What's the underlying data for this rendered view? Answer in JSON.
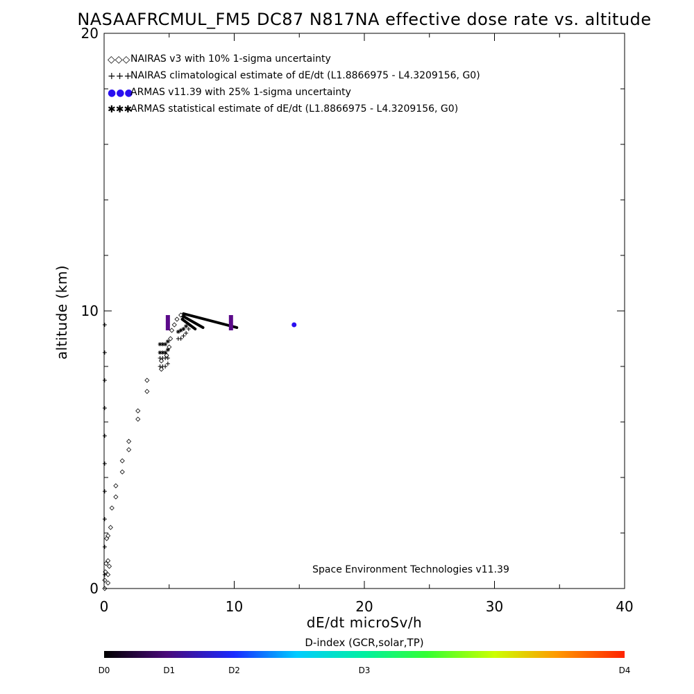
{
  "chart_data": {
    "type": "scatter",
    "title": "NASAAFRCMUL_FM5 DC87 N817NA effective dose rate vs. altitude",
    "xlabel": "dE/dt microSv/h",
    "ylabel": "altitude (km)",
    "xlim": [
      0,
      40
    ],
    "ylim": [
      0,
      20
    ],
    "x_ticks": [
      "0",
      "10",
      "20",
      "30",
      "40"
    ],
    "y_ticks": [
      "0",
      "10",
      "20"
    ],
    "grid": false,
    "legend_placement": "top-left",
    "legend": [
      {
        "marker": "◇◇◇",
        "label": "NAIRAS v3 with 10% 1-sigma uncertainty"
      },
      {
        "marker": "+++",
        "label": "NAIRAS climatological estimate of dE/dt (L1.8866975 - L4.3209156, G0)"
      },
      {
        "marker": "●●●",
        "label": "ARMAS v11.39 with 25% 1-sigma uncertainty"
      },
      {
        "marker": "✱✱✱",
        "label": "ARMAS statistical estimate of dE/dt (L1.8866975 - L4.3209156, G0)"
      }
    ],
    "credit": "Space Environment Technologies v11.39",
    "series": [
      {
        "name": "NAIRAS v3 with 10% 1-sigma uncertainty",
        "marker": "diamond",
        "color": "#000000",
        "points": [
          [
            0.05,
            0.0
          ],
          [
            0.05,
            0.3
          ],
          [
            0.1,
            0.6
          ],
          [
            0.15,
            0.9
          ],
          [
            0.3,
            0.2
          ],
          [
            0.3,
            0.5
          ],
          [
            0.4,
            0.8
          ],
          [
            0.3,
            1.0
          ],
          [
            0.2,
            1.8
          ],
          [
            0.3,
            1.9
          ],
          [
            0.5,
            2.2
          ],
          [
            0.6,
            2.9
          ],
          [
            0.9,
            3.3
          ],
          [
            0.9,
            3.7
          ],
          [
            1.4,
            4.2
          ],
          [
            1.4,
            4.6
          ],
          [
            1.9,
            5.0
          ],
          [
            1.9,
            5.3
          ],
          [
            2.6,
            6.1
          ],
          [
            2.6,
            6.4
          ],
          [
            3.3,
            7.1
          ],
          [
            3.3,
            7.5
          ],
          [
            4.4,
            7.9
          ],
          [
            4.4,
            8.2
          ],
          [
            4.8,
            8.4
          ],
          [
            5.0,
            8.7
          ],
          [
            5.1,
            9.0
          ],
          [
            5.2,
            9.3
          ],
          [
            5.4,
            9.5
          ],
          [
            5.6,
            9.7
          ],
          [
            5.9,
            9.85
          ],
          [
            6.1,
            9.8
          ]
        ]
      },
      {
        "name": "NAIRAS climatological estimate of dE/dt (L1.8866975 - L4.3209156, G0)",
        "marker": "plus",
        "color": "#000000",
        "points": [
          [
            0.05,
            0.5
          ],
          [
            0.05,
            1.5
          ],
          [
            0.05,
            2.5
          ],
          [
            0.05,
            3.5
          ],
          [
            0.05,
            4.5
          ],
          [
            0.05,
            5.5
          ],
          [
            0.05,
            6.5
          ],
          [
            0.05,
            7.5
          ],
          [
            0.05,
            8.5
          ],
          [
            0.05,
            9.5
          ],
          [
            4.3,
            8.0
          ],
          [
            4.5,
            8.0
          ],
          [
            4.7,
            8.0
          ],
          [
            4.9,
            8.1
          ],
          [
            4.3,
            8.3
          ],
          [
            4.5,
            8.3
          ],
          [
            4.7,
            8.3
          ],
          [
            4.9,
            8.3
          ],
          [
            5.7,
            9.0
          ],
          [
            5.9,
            9.0
          ],
          [
            6.1,
            9.1
          ],
          [
            6.3,
            9.2
          ],
          [
            6.5,
            9.35
          ]
        ]
      },
      {
        "name": "ARMAS v11.39 with 25% 1-sigma uncertainty",
        "marker": "filled-circle",
        "color": "#2a0ff0",
        "points": [
          [
            14.6,
            9.5
          ]
        ]
      },
      {
        "name": "ARMAS statistical estimate of dE/dt (L1.8866975 - L4.3209156, G0)",
        "marker": "asterisk",
        "color": "#000000",
        "points": [
          [
            4.3,
            8.5
          ],
          [
            4.5,
            8.5
          ],
          [
            4.7,
            8.5
          ],
          [
            4.9,
            8.6
          ],
          [
            4.3,
            8.8
          ],
          [
            4.5,
            8.8
          ],
          [
            4.7,
            8.8
          ],
          [
            4.9,
            8.9
          ],
          [
            5.7,
            9.25
          ],
          [
            5.9,
            9.3
          ],
          [
            6.1,
            9.35
          ],
          [
            6.3,
            9.45
          ]
        ]
      }
    ],
    "flight_track": {
      "color": "#000000",
      "segments": [
        [
          [
            6.1,
            9.9
          ],
          [
            10.2,
            9.4
          ]
        ],
        [
          [
            6.1,
            9.8
          ],
          [
            7.6,
            9.4
          ]
        ],
        [
          [
            6.0,
            9.7
          ],
          [
            7.0,
            9.35
          ]
        ]
      ]
    },
    "uncertainty_bars": {
      "color": "#5b0a8a",
      "bars": [
        {
          "x": 4.9,
          "y_low": 9.3,
          "y_high": 9.85
        },
        {
          "x": 9.75,
          "y_low": 9.3,
          "y_high": 9.85
        }
      ]
    },
    "colorbar": {
      "title": "D-index (GCR,solar,TP)",
      "labels": [
        {
          "text": "D0",
          "pos": 0.0
        },
        {
          "text": "D1",
          "pos": 0.125
        },
        {
          "text": "D2",
          "pos": 0.25
        },
        {
          "text": "D3",
          "pos": 0.5
        },
        {
          "text": "D4",
          "pos": 1.0
        }
      ],
      "stops": [
        {
          "pos": 0.0,
          "color": "#000000"
        },
        {
          "pos": 0.12,
          "color": "#4a0a7a"
        },
        {
          "pos": 0.25,
          "color": "#1a2aff"
        },
        {
          "pos": 0.37,
          "color": "#00ccff"
        },
        {
          "pos": 0.5,
          "color": "#00f0a0"
        },
        {
          "pos": 0.62,
          "color": "#33ff33"
        },
        {
          "pos": 0.75,
          "color": "#ccff00"
        },
        {
          "pos": 0.87,
          "color": "#ff9900"
        },
        {
          "pos": 1.0,
          "color": "#ff2200"
        }
      ]
    }
  }
}
